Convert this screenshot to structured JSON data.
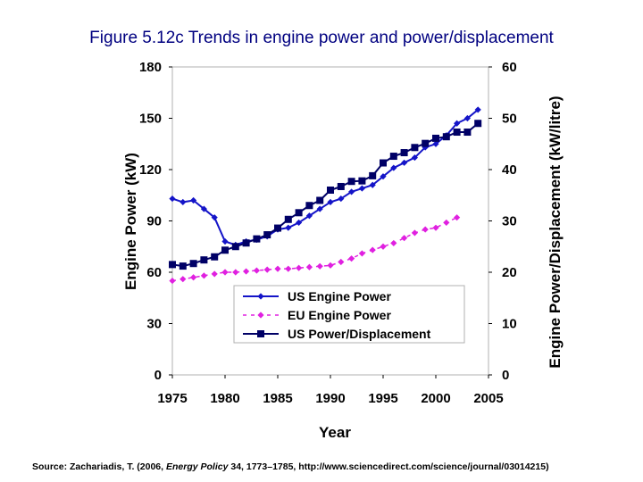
{
  "title": "Figure 5.12c Trends in engine power and power/displacement",
  "source": {
    "prefix": "Source: Zachariadis, T. (2006, ",
    "journal": "Energy Policy",
    "suffix": " 34, 1773–1785, http://www.sciencedirect.com/science/journal/03014215)"
  },
  "chart_data": {
    "type": "line",
    "xlabel": "Year",
    "ylabel": "Engine Power (kW)",
    "y2label": "Engine Power/Displacement (kW/litre)",
    "xlim": [
      1975,
      2005
    ],
    "ylim": [
      0,
      180
    ],
    "y2lim": [
      0,
      60
    ],
    "xticks": [
      "1975",
      "1980",
      "1985",
      "1990",
      "1995",
      "2000",
      "2005"
    ],
    "yticks": [
      "0",
      "30",
      "60",
      "90",
      "120",
      "150",
      "180"
    ],
    "y2ticks": [
      "0",
      "10",
      "20",
      "30",
      "40",
      "50",
      "60"
    ],
    "legend_position": "lower-right",
    "series": [
      {
        "name": "US Engine Power",
        "axis": "left",
        "color": "#1414c8",
        "marker": "diamond",
        "line": "solid",
        "x": [
          1975,
          1976,
          1977,
          1978,
          1979,
          1980,
          1981,
          1982,
          1983,
          1984,
          1985,
          1986,
          1987,
          1988,
          1989,
          1990,
          1991,
          1992,
          1993,
          1994,
          1995,
          1996,
          1997,
          1998,
          1999,
          2000,
          2001,
          2002,
          2003,
          2004
        ],
        "values": [
          103,
          101,
          102,
          97,
          92,
          78,
          76,
          78,
          79,
          81,
          85,
          86,
          89,
          93,
          97,
          101,
          103,
          107,
          109,
          111,
          116,
          121,
          124,
          127,
          133,
          135,
          140,
          147,
          150,
          155
        ]
      },
      {
        "name": "EU Engine Power",
        "axis": "left",
        "color": "#e020e0",
        "marker": "diamond",
        "line": "dashed",
        "x": [
          1975,
          1976,
          1977,
          1978,
          1979,
          1980,
          1981,
          1982,
          1983,
          1984,
          1985,
          1986,
          1987,
          1988,
          1989,
          1990,
          1991,
          1992,
          1993,
          1994,
          1995,
          1996,
          1997,
          1998,
          1999,
          2000,
          2001,
          2002
        ],
        "values": [
          55,
          56,
          57,
          58,
          59,
          60,
          60,
          60.5,
          61,
          61.5,
          62,
          62,
          62.5,
          63,
          63.5,
          64,
          66,
          68,
          71,
          73,
          75,
          77,
          80,
          83,
          85,
          86,
          89,
          92
        ]
      },
      {
        "name": "US Power/Displacement",
        "axis": "right",
        "color": "#000066",
        "marker": "square",
        "line": "solid",
        "x": [
          1975,
          1976,
          1977,
          1978,
          1979,
          1980,
          1981,
          1982,
          1983,
          1984,
          1985,
          1986,
          1987,
          1988,
          1989,
          1990,
          1991,
          1992,
          1993,
          1994,
          1995,
          1996,
          1997,
          1998,
          1999,
          2000,
          2001,
          2002,
          2003,
          2004
        ],
        "values": [
          21.5,
          21.2,
          21.7,
          22.4,
          23,
          24.3,
          25,
          25.7,
          26.5,
          27.3,
          28.6,
          30.3,
          31.6,
          33,
          34,
          36,
          36.7,
          37.7,
          37.8,
          38.8,
          41.3,
          42.6,
          43.3,
          44.3,
          45.1,
          46.1,
          46.4,
          47.3,
          47.3,
          49
        ]
      }
    ]
  }
}
